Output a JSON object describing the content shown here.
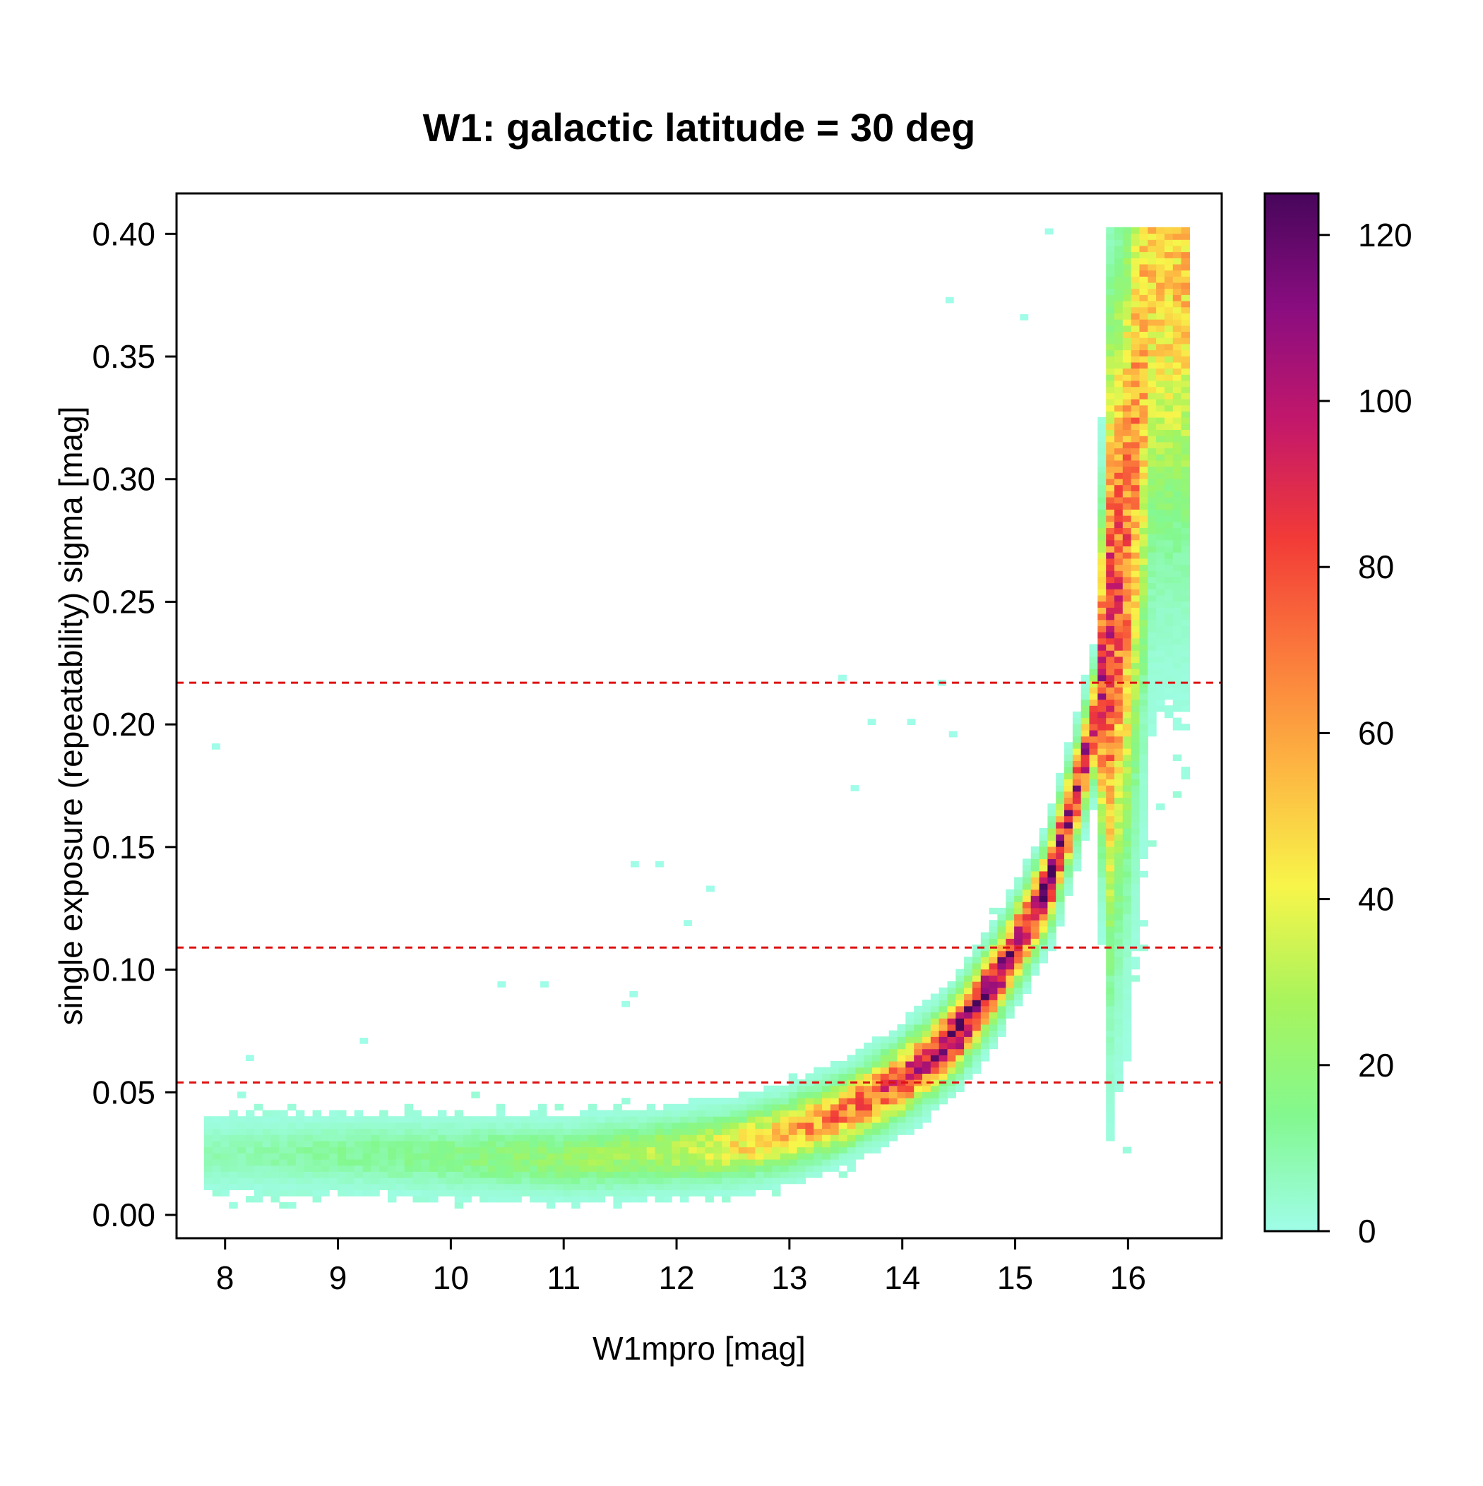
{
  "chart_data": {
    "type": "heatmap",
    "title": "W1: galactic latitude = 30 deg",
    "xlabel": "W1mpro [mag]",
    "ylabel": "single exposure (repeatability) sigma [mag]",
    "xlim": [
      7.57,
      16.83
    ],
    "ylim": [
      -0.0095,
      0.4165
    ],
    "xticks": [
      "8",
      "9",
      "10",
      "11",
      "12",
      "13",
      "14",
      "15",
      "16"
    ],
    "xtick_values": [
      8,
      9,
      10,
      11,
      12,
      13,
      14,
      15,
      16
    ],
    "yticks": [
      "0.00",
      "0.05",
      "0.10",
      "0.15",
      "0.20",
      "0.25",
      "0.30",
      "0.35",
      "0.40"
    ],
    "ytick_values": [
      0.0,
      0.05,
      0.1,
      0.15,
      0.2,
      0.25,
      0.3,
      0.35,
      0.4
    ],
    "grid": false,
    "reference_lines": {
      "orientation": "horizontal",
      "style": "dashed",
      "color": "#dd1111",
      "y_values": [
        0.054,
        0.109,
        0.217
      ]
    },
    "colorbar": {
      "range": [
        0,
        125
      ],
      "ticks": [
        "0",
        "20",
        "40",
        "60",
        "80",
        "100",
        "120"
      ],
      "tick_values": [
        0,
        20,
        40,
        60,
        80,
        100,
        120
      ],
      "colors": [
        "#9ffde8",
        "#83f88f",
        "#a8f45c",
        "#f8f54a",
        "#fdb742",
        "#fb7a3c",
        "#f23b37",
        "#c4186a",
        "#8a0d80",
        "#47065b"
      ],
      "placement": "right"
    },
    "ridge": {
      "description_points": [
        {
          "x": 8.0,
          "y": 0.025,
          "count": 8
        },
        {
          "x": 9.0,
          "y": 0.025,
          "count": 12
        },
        {
          "x": 10.0,
          "y": 0.024,
          "count": 16
        },
        {
          "x": 11.0,
          "y": 0.023,
          "count": 22
        },
        {
          "x": 12.0,
          "y": 0.026,
          "count": 32
        },
        {
          "x": 12.5,
          "y": 0.028,
          "count": 45
        },
        {
          "x": 13.0,
          "y": 0.033,
          "count": 58
        },
        {
          "x": 13.5,
          "y": 0.042,
          "count": 70
        },
        {
          "x": 14.0,
          "y": 0.055,
          "count": 88
        },
        {
          "x": 14.3,
          "y": 0.066,
          "count": 100
        },
        {
          "x": 14.5,
          "y": 0.075,
          "count": 115
        },
        {
          "x": 14.8,
          "y": 0.094,
          "count": 110
        },
        {
          "x": 15.0,
          "y": 0.109,
          "count": 105
        },
        {
          "x": 15.3,
          "y": 0.135,
          "count": 110
        },
        {
          "x": 15.5,
          "y": 0.165,
          "count": 100
        },
        {
          "x": 15.7,
          "y": 0.2,
          "count": 95
        },
        {
          "x": 15.85,
          "y": 0.24,
          "count": 85
        },
        {
          "x": 16.0,
          "y": 0.28,
          "count": 70
        },
        {
          "x": 16.1,
          "y": 0.33,
          "count": 60
        },
        {
          "x": 16.2,
          "y": 0.39,
          "count": 52
        }
      ],
      "x_max": 16.55,
      "y_max": 0.402
    },
    "outlier_bins": [
      {
        "x": 7.92,
        "y": 0.191
      },
      {
        "x": 15.3,
        "y": 0.401
      },
      {
        "x": 14.42,
        "y": 0.373
      },
      {
        "x": 15.08,
        "y": 0.366
      },
      {
        "x": 13.47,
        "y": 0.219
      },
      {
        "x": 13.73,
        "y": 0.201
      },
      {
        "x": 13.58,
        "y": 0.174
      },
      {
        "x": 11.63,
        "y": 0.143
      },
      {
        "x": 11.85,
        "y": 0.143
      },
      {
        "x": 12.3,
        "y": 0.133
      },
      {
        "x": 12.1,
        "y": 0.119
      },
      {
        "x": 10.45,
        "y": 0.094
      },
      {
        "x": 10.83,
        "y": 0.094
      },
      {
        "x": 9.23,
        "y": 0.071
      },
      {
        "x": 8.22,
        "y": 0.064
      },
      {
        "x": 11.55,
        "y": 0.086
      },
      {
        "x": 11.62,
        "y": 0.09
      },
      {
        "x": 14.35,
        "y": 0.217
      },
      {
        "x": 14.08,
        "y": 0.201
      },
      {
        "x": 14.45,
        "y": 0.196
      }
    ]
  }
}
